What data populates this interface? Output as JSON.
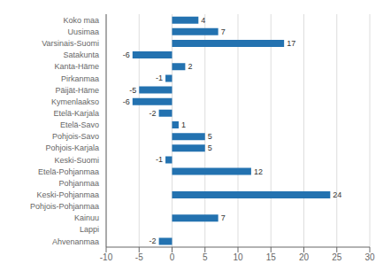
{
  "chart_data": {
    "type": "bar",
    "orientation": "horizontal",
    "categories": [
      "Ahvenanmaa",
      "Lappi",
      "Kainuu",
      "Pohjois-Pohjanmaa",
      "Keski-Pohjanmaa",
      "Pohjanmaa",
      "Etelä-Pohjanmaa",
      "Keski-Suomi",
      "Pohjois-Karjala",
      "Pohjois-Savo",
      "Etelä-Savo",
      "Etelä-Karjala",
      "Kymenlaakso",
      "Päijät-Häme",
      "Pirkanmaa",
      "Kanta-Häme",
      "Satakunta",
      "Varsinais-Suomi",
      "Uusimaa",
      "Koko maa"
    ],
    "values": [
      -2,
      0,
      7,
      0,
      24,
      0,
      12,
      -1,
      5,
      5,
      1,
      -2,
      -6,
      -5,
      -1,
      2,
      -6,
      17,
      7,
      4
    ],
    "color": "#2372b0",
    "xlim": [
      -10,
      30
    ],
    "xticks": [
      -10,
      -5,
      0,
      5,
      10,
      15,
      20,
      25,
      30
    ],
    "grid": true,
    "data_labels": true
  }
}
